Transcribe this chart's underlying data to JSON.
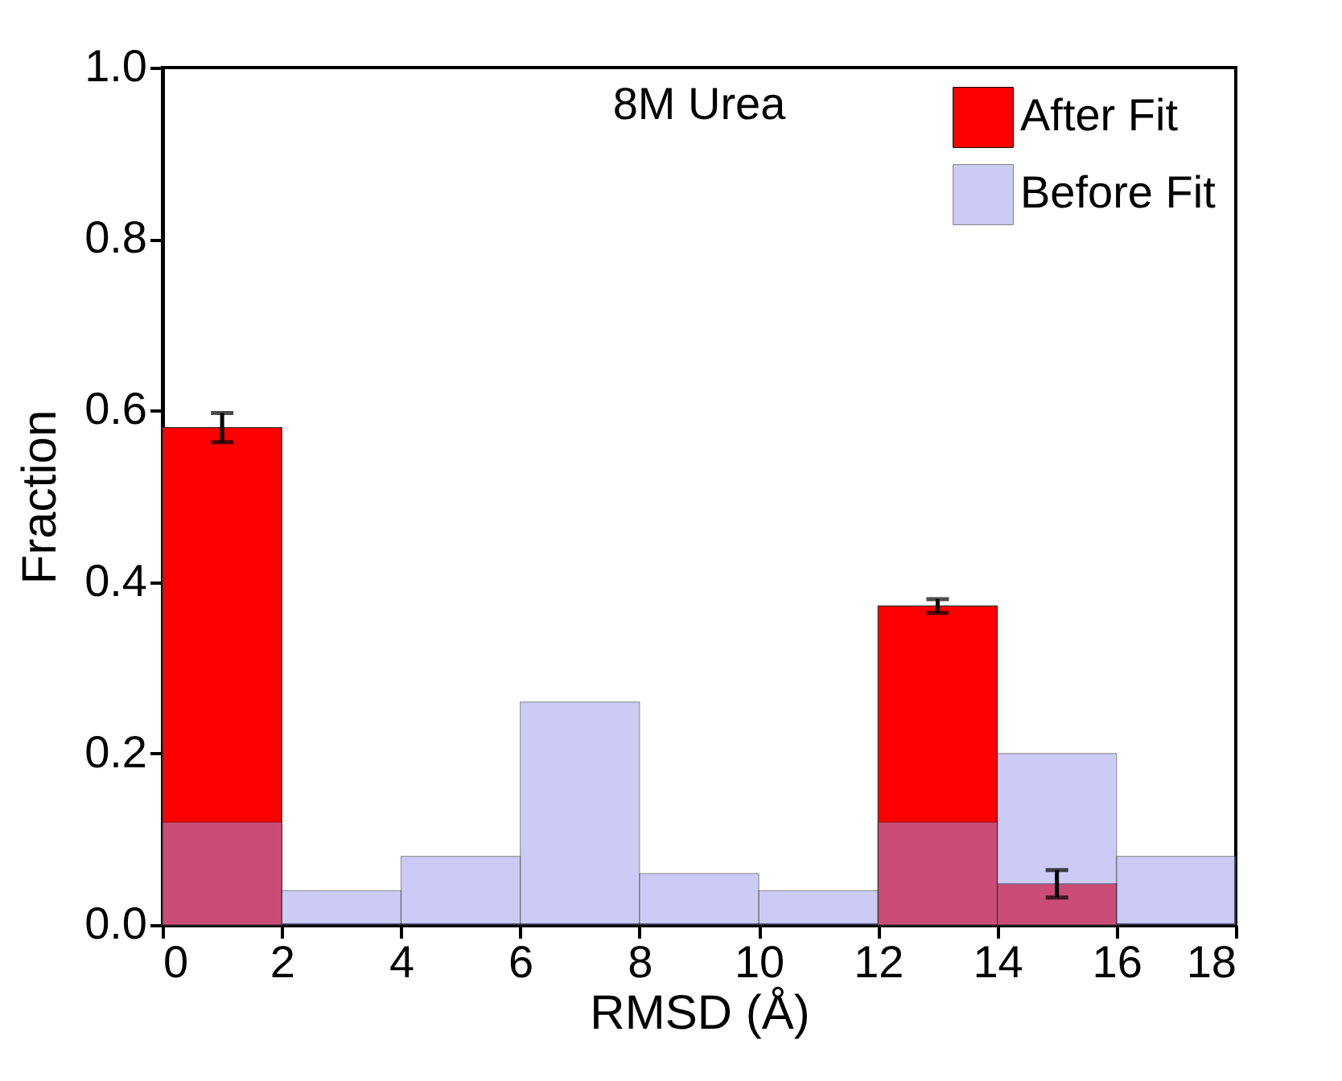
{
  "chart_data": {
    "type": "histogram",
    "title": "8M Urea",
    "xlabel": "RMSD (Å)",
    "ylabel": "Fraction",
    "bins": [
      0,
      2,
      4,
      6,
      8,
      10,
      12,
      14,
      16,
      18
    ],
    "series": [
      {
        "name": "After Fit",
        "color": "#ff0000",
        "values": [
          0.58,
          null,
          null,
          null,
          null,
          null,
          0.372,
          0.048,
          null
        ],
        "errors": [
          0.017,
          null,
          null,
          null,
          null,
          null,
          0.008,
          0.016,
          null
        ]
      },
      {
        "name": "Before Fit",
        "color": "#9999ee",
        "values": [
          0.12,
          0.04,
          0.08,
          0.26,
          0.06,
          0.04,
          0.12,
          0.2,
          0.08
        ]
      }
    ],
    "xlim": [
      0,
      18
    ],
    "xticks": [
      0,
      2,
      4,
      6,
      8,
      10,
      12,
      14,
      16,
      18
    ],
    "ylim": [
      0,
      1
    ],
    "yticks": [
      {
        "value": 0,
        "label": "0.0"
      },
      0.2,
      0.4,
      0.6,
      0.8,
      {
        "value": 1,
        "label": "1.0"
      }
    ],
    "grid": false,
    "legend": "top right"
  }
}
